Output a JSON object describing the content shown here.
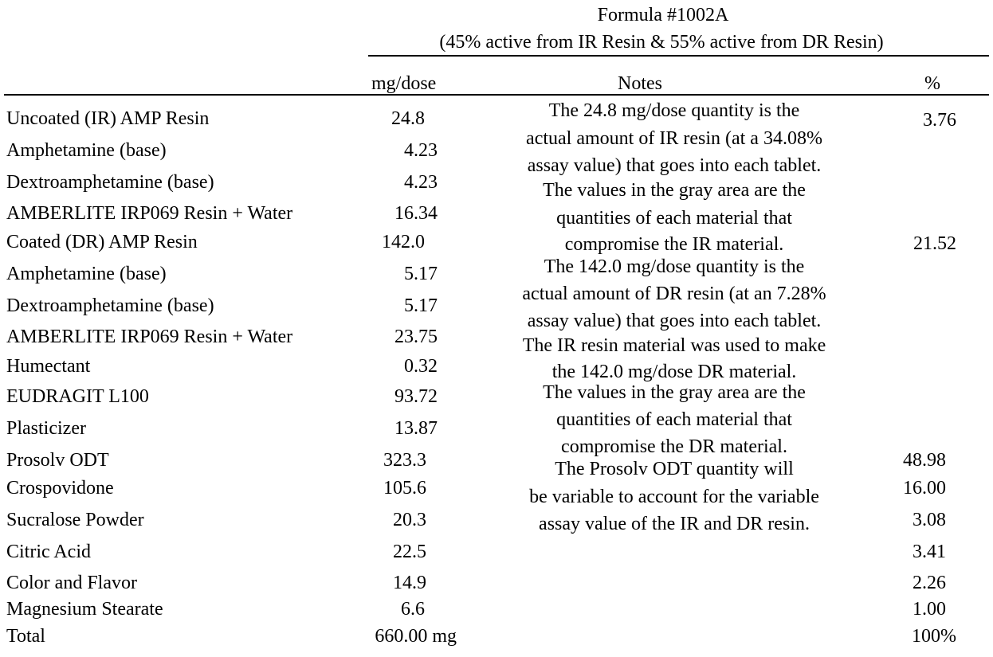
{
  "header": {
    "formula_title": "Formula #1002A",
    "formula_subtitle": "(45% active from IR Resin & 55% active from DR Resin)",
    "col_dose": "mg/dose",
    "col_notes": "Notes",
    "col_percent": "%"
  },
  "rows": [
    {
      "name": "Uncoated (IR) AMP Resin",
      "dose": "24.8",
      "pct": "3.76"
    },
    {
      "name": "Amphetamine (base)",
      "dose": "4.23",
      "pct": ""
    },
    {
      "name": "Dextroamphetamine (base)",
      "dose": "4.23",
      "pct": ""
    },
    {
      "name": "AMBERLITE IRP069 Resin + Water",
      "dose": "16.34",
      "pct": ""
    },
    {
      "name": "Coated (DR) AMP Resin",
      "dose": "142.0",
      "pct": "21.52"
    },
    {
      "name": "Amphetamine (base)",
      "dose": "5.17",
      "pct": ""
    },
    {
      "name": "Dextroamphetamine (base)",
      "dose": "5.17",
      "pct": ""
    },
    {
      "name": "AMBERLITE IRP069 Resin + Water",
      "dose": "23.75",
      "pct": ""
    },
    {
      "name": "Humectant",
      "dose": "0.32",
      "pct": ""
    },
    {
      "name": "EUDRAGIT L100",
      "dose": "93.72",
      "pct": ""
    },
    {
      "name": "Plasticizer",
      "dose": "13.87",
      "pct": ""
    },
    {
      "name": "Prosolv ODT",
      "dose": "323.3",
      "pct": "48.98"
    },
    {
      "name": "Crospovidone",
      "dose": "105.6",
      "pct": "16.00"
    },
    {
      "name": "Sucralose Powder",
      "dose": "20.3",
      "pct": "3.08"
    },
    {
      "name": "Citric Acid",
      "dose": "22.5",
      "pct": "3.41"
    },
    {
      "name": "Color and Flavor",
      "dose": "14.9",
      "pct": "2.26"
    },
    {
      "name": "Magnesium Stearate",
      "dose": "6.6",
      "pct": "1.00"
    },
    {
      "name": "Total",
      "dose": "660.00 mg",
      "pct": "100%"
    }
  ],
  "notes": [
    "The 24.8 mg/dose quantity is the",
    "actual amount of IR resin (at a 34.08%",
    "assay value) that goes into each tablet.",
    "The values in the gray area are the",
    "quantities of each material that",
    "compromise the IR material.",
    "The 142.0 mg/dose quantity is the",
    "actual amount of DR resin (at an 7.28%",
    "assay value) that goes into each tablet.",
    "The IR resin material was used to make",
    "the 142.0 mg/dose DR material.",
    "The values in the gray area are the",
    "quantities of each material that",
    "compromise the DR material.",
    "The Prosolv ODT quantity will",
    "be variable to account for the variable",
    "assay value of the IR and DR resin."
  ]
}
